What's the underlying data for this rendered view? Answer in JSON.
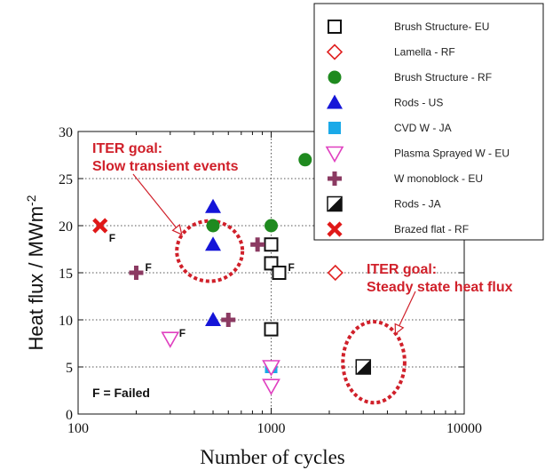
{
  "chart_data": {
    "type": "scatter",
    "xlabel": "Number of cycles",
    "ylabel": "Heat flux / MWm",
    "ylabel_sup": "-2",
    "xscale": "log",
    "xlim": [
      100,
      10000
    ],
    "ylim": [
      0,
      30
    ],
    "x_ticks": [
      "100",
      "1000",
      "10000"
    ],
    "y_ticks": [
      "0",
      "5",
      "10",
      "15",
      "20",
      "25",
      "30"
    ],
    "grid": "dotted",
    "legend_position": "top-right",
    "series": [
      {
        "name": "Brush Structure- EU",
        "marker": "square-open",
        "color": "#111111",
        "points": [
          {
            "x": 1000,
            "y": 18
          },
          {
            "x": 1000,
            "y": 16
          },
          {
            "x": 1100,
            "y": 15
          },
          {
            "x": 1000,
            "y": 9
          }
        ]
      },
      {
        "name": "Lamella - RF",
        "marker": "diamond-open",
        "color": "#e02020",
        "points": [
          {
            "x": 2150,
            "y": 15
          }
        ]
      },
      {
        "name": "Brush Structure - RF",
        "marker": "circle",
        "color": "#1f8a1f",
        "points": [
          {
            "x": 500,
            "y": 20
          },
          {
            "x": 1000,
            "y": 20
          },
          {
            "x": 1500,
            "y": 27
          }
        ]
      },
      {
        "name": "Rods - US",
        "marker": "triangle-up",
        "color": "#1515d8",
        "points": [
          {
            "x": 500,
            "y": 22
          },
          {
            "x": 500,
            "y": 18
          },
          {
            "x": 500,
            "y": 10
          }
        ]
      },
      {
        "name": "CVD W - JA",
        "marker": "square",
        "color": "#1aa9e8",
        "points": [
          {
            "x": 1000,
            "y": 5
          }
        ]
      },
      {
        "name": "Plasma Sprayed W - EU",
        "marker": "triangle-down-open",
        "color": "#e040c0",
        "points": [
          {
            "x": 300,
            "y": 8
          },
          {
            "x": 1000,
            "y": 5
          },
          {
            "x": 1000,
            "y": 3
          }
        ]
      },
      {
        "name": "W  monoblock - EU",
        "marker": "plus",
        "color": "#8b3a62",
        "points": [
          {
            "x": 200,
            "y": 15
          },
          {
            "x": 600,
            "y": 10
          },
          {
            "x": 850,
            "y": 18
          }
        ]
      },
      {
        "name": "Rods - JA",
        "marker": "square-half",
        "color": "#111111",
        "points": [
          {
            "x": 3000,
            "y": 5
          }
        ]
      },
      {
        "name": "Brazed flat   - RF",
        "marker": "x",
        "color": "#e01818",
        "points": [
          {
            "x": 130,
            "y": 20
          }
        ]
      }
    ],
    "failed_flags": [
      {
        "x": 130,
        "y": 20,
        "label": "F"
      },
      {
        "x": 200,
        "y": 15,
        "label": "F"
      },
      {
        "x": 300,
        "y": 8,
        "label": "F"
      },
      {
        "x": 1100,
        "y": 15,
        "label": "F"
      }
    ],
    "annotations": [
      {
        "label": "ITER goal:",
        "label2": "Slow transient events",
        "ellipse_x": 480,
        "ellipse_y": 17.3,
        "ellipse_rx_decades": 0.17,
        "ellipse_ry_units": 3.2
      },
      {
        "label": "ITER goal:",
        "label2": "Steady state heat flux",
        "ellipse_x": 3400,
        "ellipse_y": 5.5,
        "ellipse_rx_decades": 0.16,
        "ellipse_ry_units": 4.3
      }
    ],
    "note": "F = Failed"
  }
}
